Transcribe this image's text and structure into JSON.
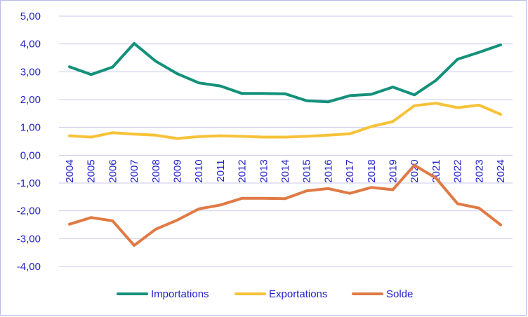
{
  "chart_data": {
    "type": "line",
    "title": "",
    "xlabel": "",
    "ylabel": "",
    "ylim": [
      -4,
      5
    ],
    "yticks": [
      "5,00",
      "4,00",
      "3,00",
      "2,00",
      "1,00",
      "0,00",
      "-1,00",
      "-2,00",
      "-3,00",
      "-4,00"
    ],
    "x": [
      "2004",
      "2005",
      "2006",
      "2007",
      "2008",
      "2009",
      "2010",
      "2011",
      "2012",
      "2013",
      "2014",
      "2015",
      "2016",
      "2017",
      "2018",
      "2019",
      "2020",
      "2021",
      "2022",
      "2023",
      "2024"
    ],
    "grid": "horizontal",
    "legend_position": "bottom",
    "series": [
      {
        "name": "Importations",
        "color": "#13917a",
        "values": [
          3.18,
          2.9,
          3.17,
          4.02,
          3.38,
          2.93,
          2.6,
          2.49,
          2.22,
          2.22,
          2.21,
          1.96,
          1.92,
          2.14,
          2.19,
          2.45,
          2.17,
          2.69,
          3.45,
          3.7,
          3.97
        ]
      },
      {
        "name": "Exportations",
        "color": "#f7c239",
        "values": [
          0.7,
          0.65,
          0.81,
          0.76,
          0.72,
          0.6,
          0.67,
          0.7,
          0.68,
          0.65,
          0.65,
          0.68,
          0.72,
          0.77,
          1.03,
          1.21,
          1.78,
          1.87,
          1.71,
          1.8,
          1.47
        ]
      },
      {
        "name": "Solde",
        "color": "#e07a45",
        "values": [
          -2.48,
          -2.24,
          -2.36,
          -3.24,
          -2.66,
          -2.33,
          -1.93,
          -1.79,
          -1.55,
          -1.55,
          -1.56,
          -1.28,
          -1.2,
          -1.37,
          -1.16,
          -1.24,
          -0.36,
          -0.82,
          -1.74,
          -1.9,
          -2.5
        ]
      }
    ]
  }
}
